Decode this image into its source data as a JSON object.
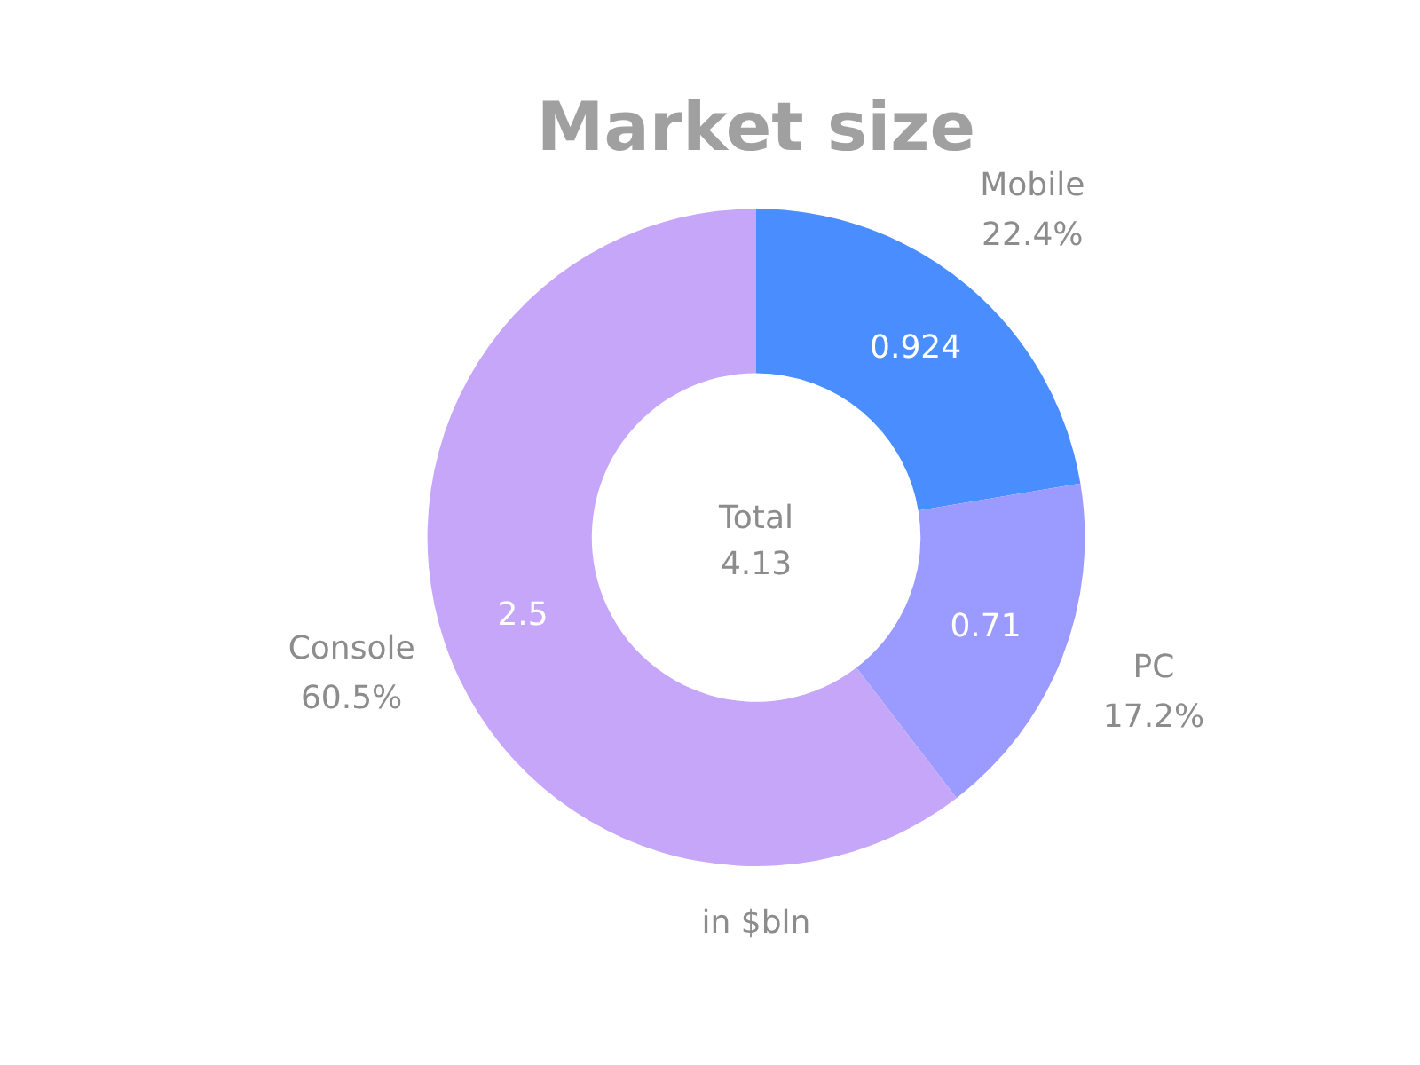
{
  "chart_data": {
    "type": "donut",
    "title": "Market size",
    "categories": [
      "Mobile",
      "PC",
      "Console"
    ],
    "values": [
      22.4,
      17.2,
      60.5
    ],
    "colors": [
      "#4a8dff",
      "#9a9aff",
      "#c6a6f8"
    ],
    "value_labels": [
      "22.4%",
      "17.2%",
      "60.5%"
    ],
    "annotations": [
      {
        "text": "0.924",
        "x": "Mobile"
      },
      {
        "text": "0.71",
        "x": "PC"
      },
      {
        "text": "2.5",
        "x": "Console"
      },
      "Total",
      "4.13",
      "in $bln"
    ],
    "legend": false
  }
}
